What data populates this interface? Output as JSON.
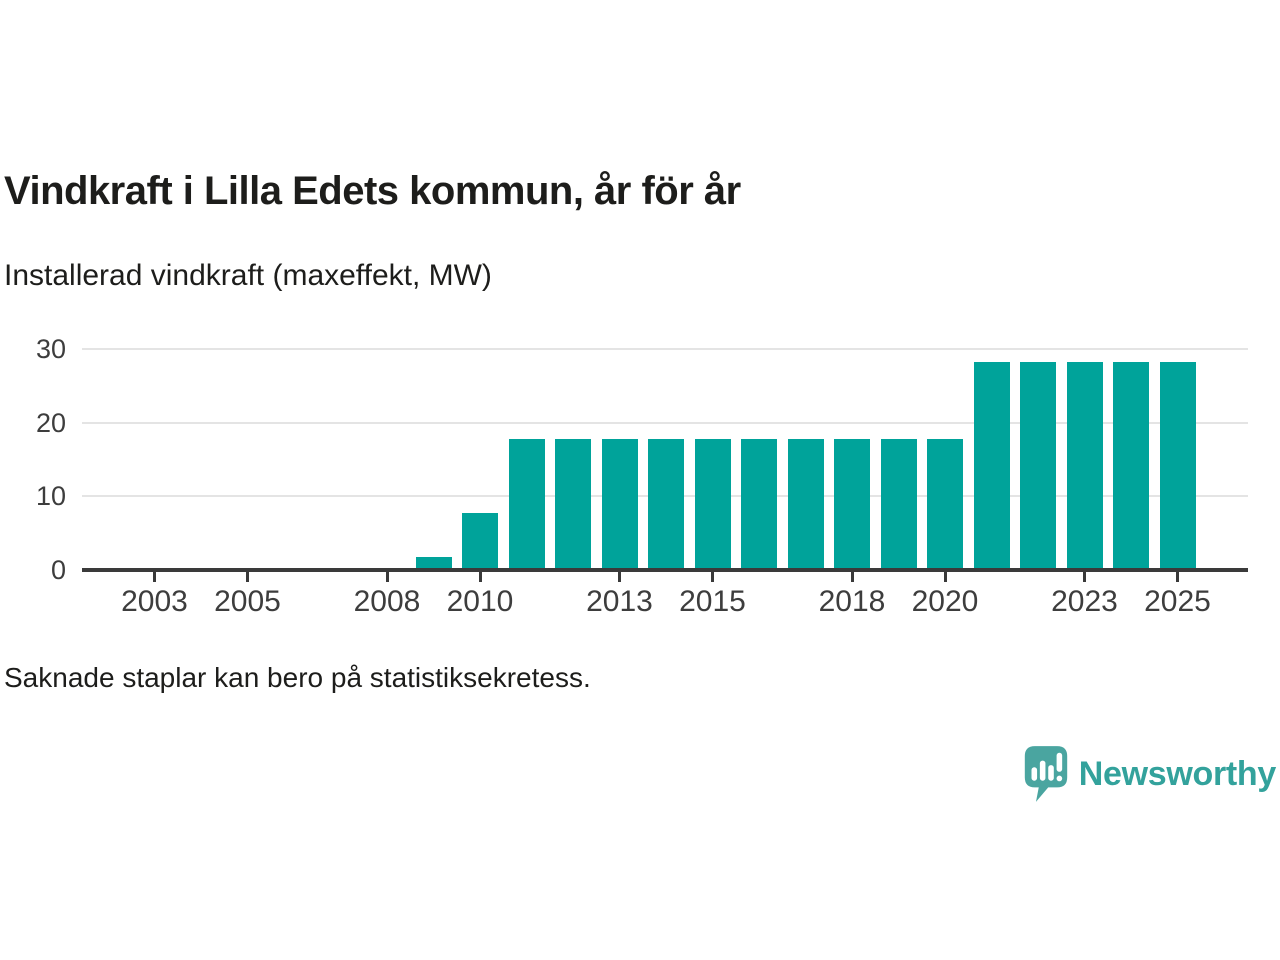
{
  "header": {
    "title": "Vindkraft i Lilla Edets kommun, år för år",
    "subtitle": "Installerad vindkraft (maxeffekt, MW)"
  },
  "footnote": "Saknade staplar kan bero på statistiksekretess.",
  "brand": {
    "name": "Newsworthy",
    "icon": "newsworthy-bar-chart-bubble-icon",
    "icon_color": "#4aa5a0",
    "text_color": "#33a29c"
  },
  "chart_data": {
    "type": "bar",
    "title": "Vindkraft i Lilla Edets kommun, år för år",
    "ylabel": "Installerad vindkraft (maxeffekt, MW)",
    "xlabel": "",
    "x": [
      2009,
      2010,
      2011,
      2012,
      2013,
      2014,
      2015,
      2016,
      2017,
      2018,
      2019,
      2020,
      2021,
      2022,
      2023,
      2024,
      2025
    ],
    "values": [
      1.8,
      7.7,
      17.8,
      17.8,
      17.8,
      17.8,
      17.8,
      17.8,
      17.8,
      17.8,
      17.8,
      17.8,
      28.3,
      28.3,
      28.3,
      28.3,
      28.3
    ],
    "years_without_bars": [
      2002,
      2003,
      2004,
      2005,
      2006,
      2007,
      2008
    ],
    "xticks": [
      2003,
      2005,
      2008,
      2010,
      2013,
      2015,
      2018,
      2020,
      2023,
      2025
    ],
    "yticks": [
      0,
      10,
      20,
      30
    ],
    "ylim": [
      0,
      30
    ],
    "xlim_years": [
      2002,
      2025
    ],
    "bar_color": "#00a39a",
    "grid": "horizontal",
    "legend": "none"
  }
}
